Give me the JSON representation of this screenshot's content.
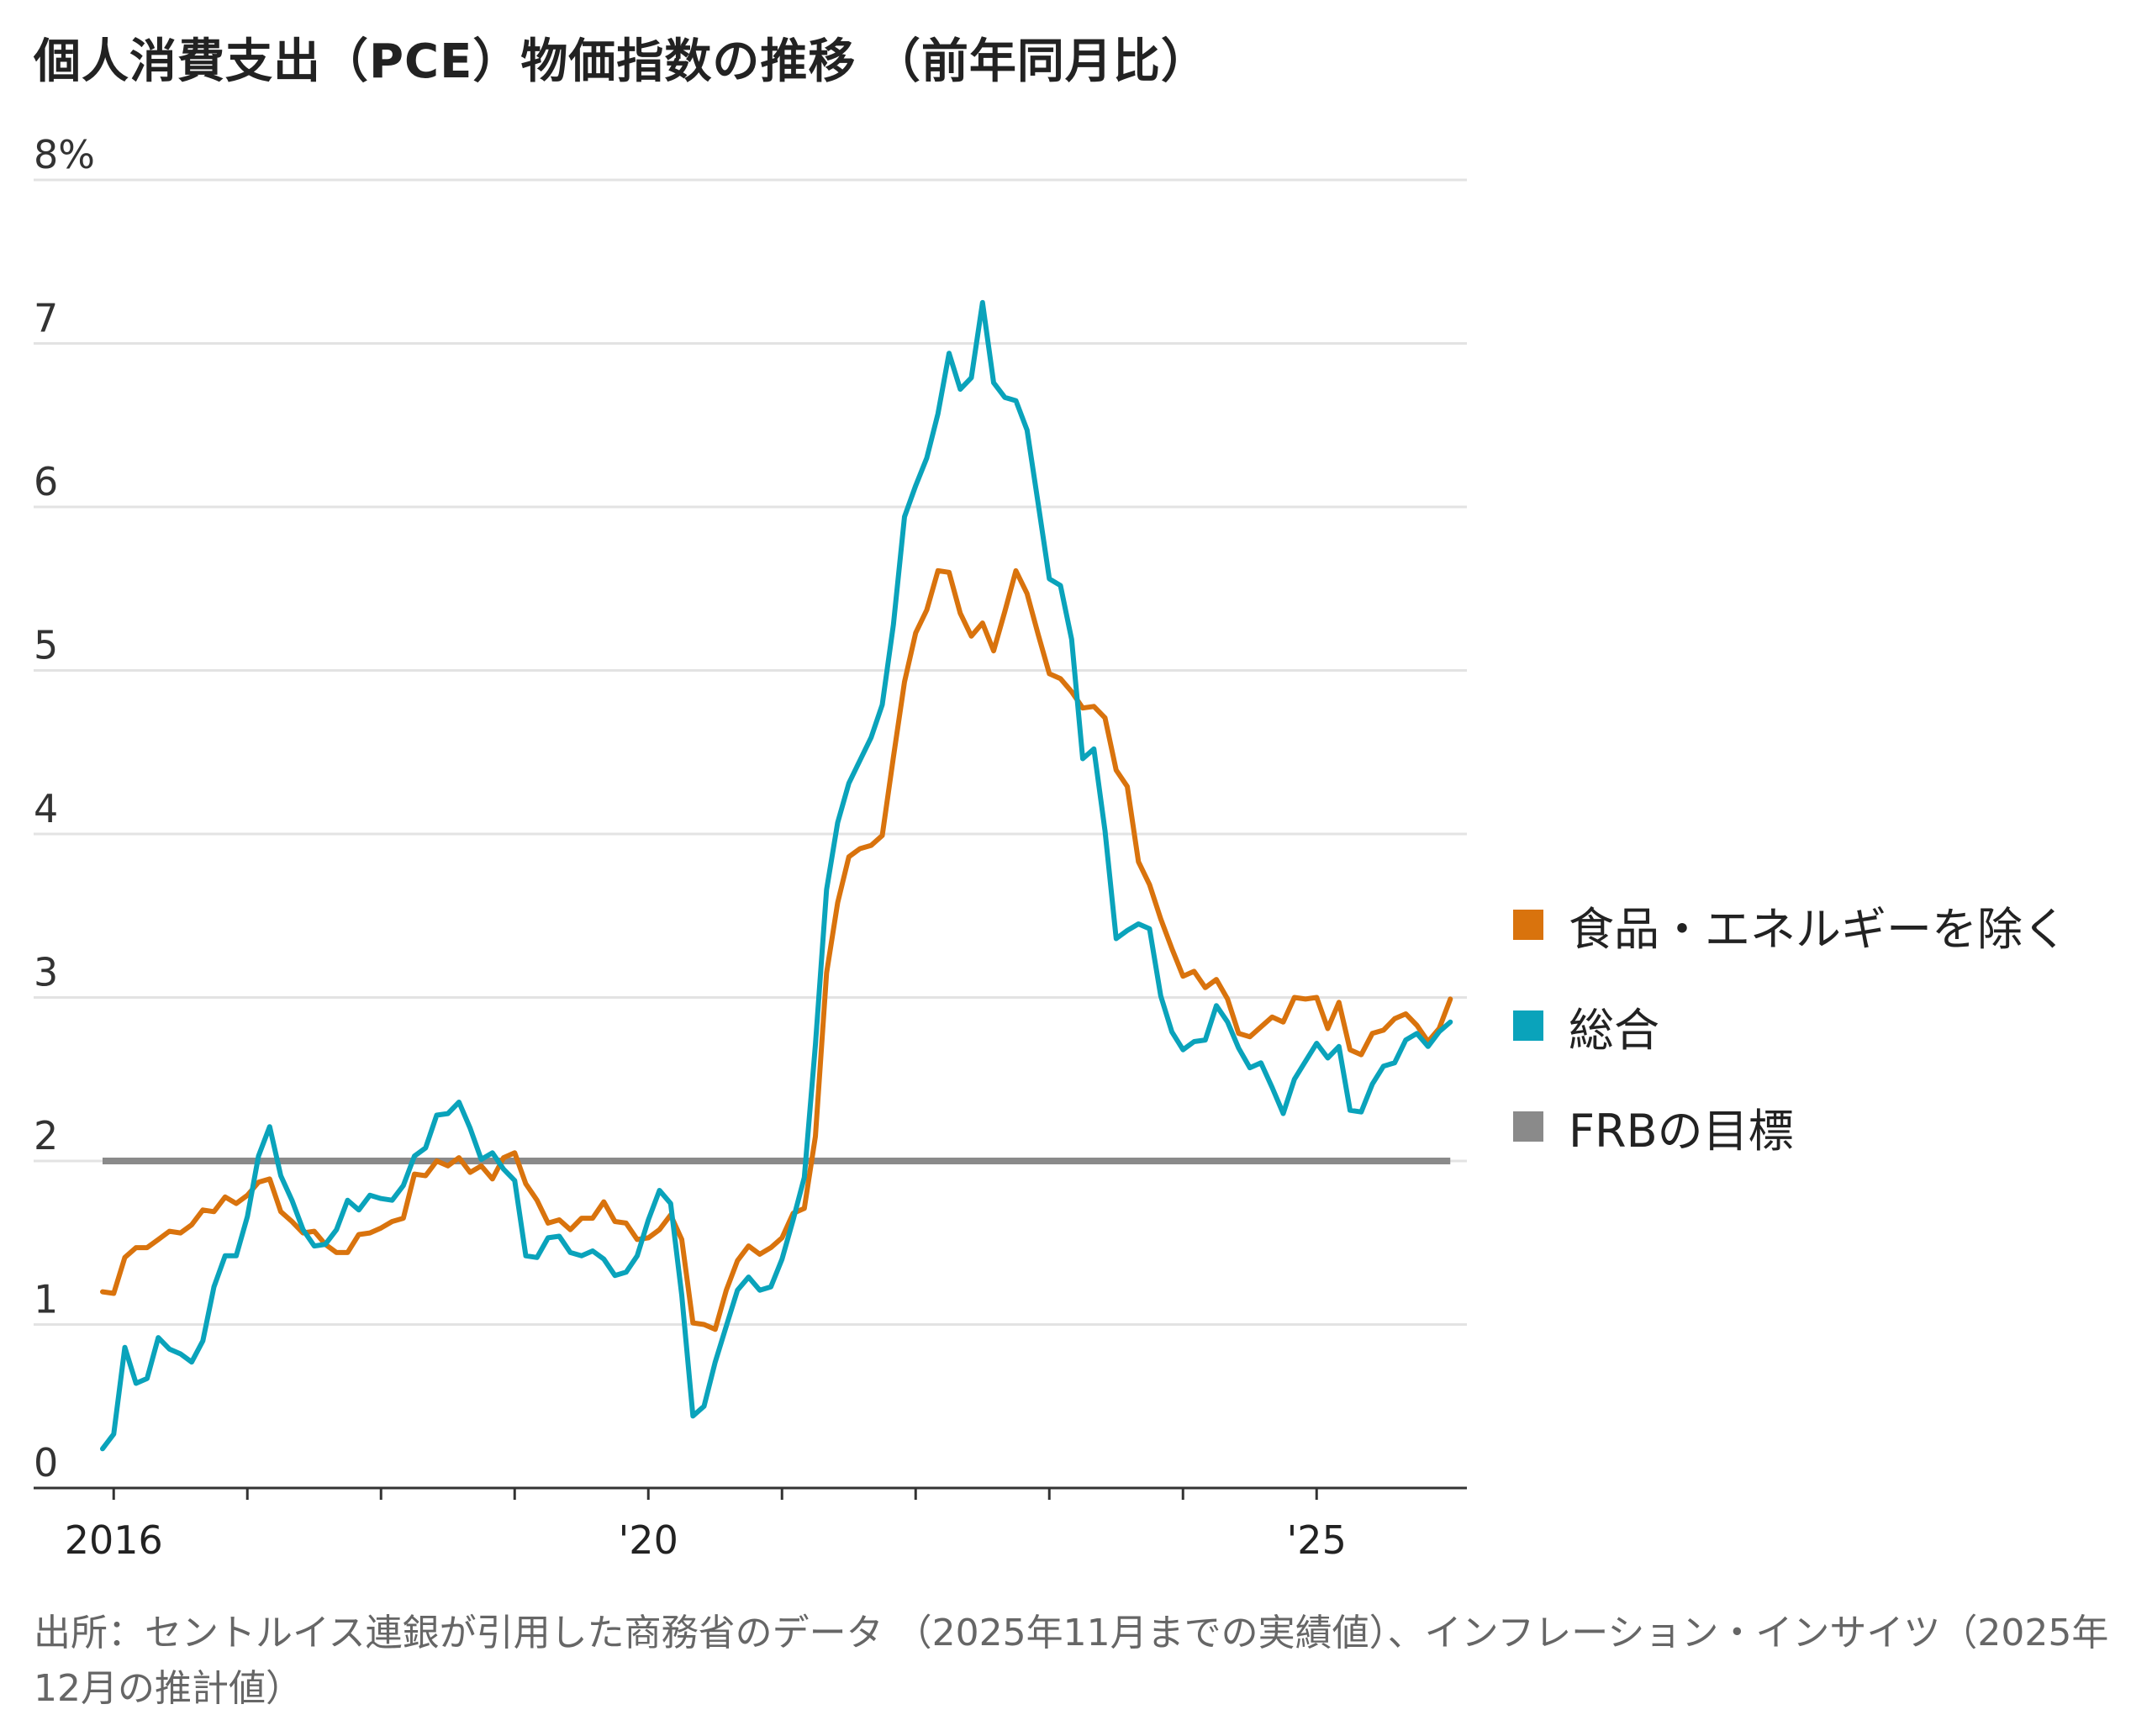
{
  "title": "個人消費支出（PCE）物価指数の推移 （前年同月比）",
  "source": "出所：セントルイス連銀が引用した商務省のデータ （2025年11月までの実績値）、インフレーション・インサイツ（2025年12月の推計値）",
  "legend": {
    "core": "食品・エネルギーを除く",
    "headline": "総合",
    "target": "FRBの目標"
  },
  "colors": {
    "core": "#d9730d",
    "headline": "#0aa3bb",
    "target": "#8a8a8a",
    "grid": "#e3e3e3",
    "axis": "#333333"
  },
  "y_tick_labels": [
    "0",
    "1",
    "2",
    "3",
    "4",
    "5",
    "6",
    "7",
    "8%"
  ],
  "x_tick_labels": [
    "2016",
    "'20",
    "'25"
  ],
  "chart_data": {
    "type": "line",
    "x_start": "2015-12",
    "x_end": "2025-12",
    "ylim": [
      0,
      8
    ],
    "target": 2.0,
    "series": [
      {
        "name": "食品・エネルギーを除く",
        "values": [
          1.2,
          1.19,
          1.41,
          1.47,
          1.47,
          1.52,
          1.57,
          1.56,
          1.61,
          1.7,
          1.69,
          1.78,
          1.74,
          1.79,
          1.87,
          1.89,
          1.69,
          1.63,
          1.56,
          1.57,
          1.49,
          1.44,
          1.44,
          1.55,
          1.56,
          1.59,
          1.63,
          1.65,
          1.92,
          1.91,
          2.0,
          1.97,
          2.02,
          1.93,
          1.97,
          1.89,
          2.02,
          2.05,
          1.86,
          1.76,
          1.62,
          1.64,
          1.58,
          1.65,
          1.65,
          1.75,
          1.63,
          1.62,
          1.52,
          1.53,
          1.58,
          1.67,
          1.52,
          1.01,
          1.0,
          0.97,
          1.21,
          1.39,
          1.48,
          1.43,
          1.47,
          1.53,
          1.68,
          1.71,
          2.15,
          3.15,
          3.58,
          3.86,
          3.91,
          3.93,
          3.99,
          4.47,
          4.93,
          5.23,
          5.37,
          5.61,
          5.6,
          5.35,
          5.21,
          5.29,
          5.12,
          5.36,
          5.61,
          5.47,
          5.22,
          4.98,
          4.95,
          4.87,
          4.77,
          4.78,
          4.71,
          4.39,
          4.29,
          3.83,
          3.69,
          3.48,
          3.3,
          3.13,
          3.16,
          3.06,
          3.11,
          2.99,
          2.78,
          2.76,
          2.82,
          2.88,
          2.85,
          3.0,
          2.99,
          3.0,
          2.81,
          2.97,
          2.68,
          2.65,
          2.78,
          2.8,
          2.87,
          2.9,
          2.83,
          2.73,
          2.81,
          2.99
        ]
      },
      {
        "name": "総合",
        "values": [
          0.24,
          0.33,
          0.86,
          0.64,
          0.67,
          0.92,
          0.85,
          0.82,
          0.77,
          0.9,
          1.23,
          1.42,
          1.42,
          1.66,
          2.03,
          2.21,
          1.91,
          1.76,
          1.58,
          1.48,
          1.49,
          1.58,
          1.76,
          1.7,
          1.79,
          1.77,
          1.76,
          1.85,
          2.03,
          2.08,
          2.28,
          2.29,
          2.36,
          2.2,
          2.01,
          2.05,
          1.95,
          1.88,
          1.42,
          1.41,
          1.53,
          1.54,
          1.44,
          1.42,
          1.45,
          1.4,
          1.3,
          1.32,
          1.42,
          1.64,
          1.82,
          1.74,
          1.18,
          0.44,
          0.5,
          0.77,
          0.99,
          1.21,
          1.29,
          1.21,
          1.23,
          1.4,
          1.64,
          1.9,
          2.71,
          3.66,
          4.07,
          4.31,
          4.45,
          4.59,
          4.79,
          5.28,
          5.94,
          6.13,
          6.3,
          6.57,
          6.94,
          6.72,
          6.79,
          7.25,
          6.76,
          6.67,
          6.65,
          6.47,
          6.02,
          5.56,
          5.52,
          5.19,
          4.46,
          4.52,
          4.02,
          3.36,
          3.41,
          3.45,
          3.42,
          3.01,
          2.79,
          2.68,
          2.73,
          2.74,
          2.95,
          2.85,
          2.69,
          2.57,
          2.6,
          2.45,
          2.29,
          2.5,
          2.61,
          2.72,
          2.63,
          2.7,
          2.31,
          2.3,
          2.47,
          2.58,
          2.6,
          2.74,
          2.78,
          2.7,
          2.79,
          2.85
        ]
      }
    ]
  }
}
